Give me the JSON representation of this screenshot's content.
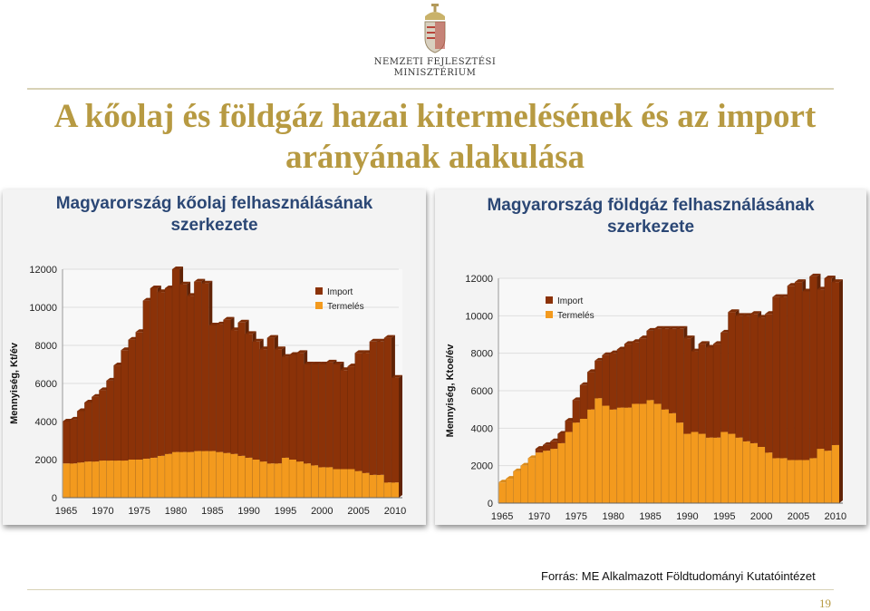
{
  "header": {
    "logo_line1": "Nemzeti Fejlesztési",
    "logo_line2": "Minisztérium",
    "title_line1": "A kőolaj és földgáz hazai kitermelésének és az import",
    "title_line2": "arányának alakulása"
  },
  "colors": {
    "import": "#8b3208",
    "production": "#f39a1e",
    "title": "#b79a42",
    "panel_title": "#2b4775"
  },
  "chart_data": [
    {
      "type": "bar",
      "stacked": true,
      "title": "Magyarország kőolaj felhasználásának szerkezete",
      "ylabel": "Mennyiség, Kt/év",
      "xlabel": "",
      "ylim": [
        0,
        12000
      ],
      "yticks": [
        0,
        2000,
        4000,
        6000,
        8000,
        10000,
        12000
      ],
      "xticks": [
        1965,
        1970,
        1975,
        1980,
        1985,
        1990,
        1995,
        2000,
        2005,
        2010
      ],
      "legend_position": "top-right",
      "x": [
        1965,
        1966,
        1967,
        1968,
        1969,
        1970,
        1971,
        1972,
        1973,
        1974,
        1975,
        1976,
        1977,
        1978,
        1979,
        1980,
        1981,
        1982,
        1983,
        1984,
        1985,
        1986,
        1987,
        1988,
        1989,
        1990,
        1991,
        1992,
        1993,
        1994,
        1995,
        1996,
        1997,
        1998,
        1999,
        2000,
        2001,
        2002,
        2003,
        2004,
        2005,
        2006,
        2007,
        2008,
        2009,
        2010
      ],
      "series": [
        {
          "name": "Termelés",
          "color": "#f39a1e",
          "values": [
            1800,
            1800,
            1850,
            1900,
            1900,
            1950,
            1950,
            1950,
            1950,
            2000,
            2000,
            2050,
            2100,
            2200,
            2300,
            2400,
            2400,
            2400,
            2450,
            2450,
            2450,
            2400,
            2350,
            2300,
            2200,
            2100,
            2000,
            1900,
            1800,
            1800,
            2100,
            2000,
            1900,
            1800,
            1700,
            1600,
            1600,
            1500,
            1500,
            1500,
            1400,
            1300,
            1200,
            1200,
            800,
            800
          ]
        },
        {
          "name": "Import",
          "color": "#8b3208",
          "values": [
            2200,
            2300,
            2700,
            3100,
            3400,
            3700,
            4200,
            5000,
            5800,
            6300,
            6700,
            8300,
            8900,
            8600,
            8700,
            9600,
            8800,
            8200,
            8900,
            8800,
            6600,
            6700,
            7000,
            6500,
            7000,
            6500,
            6200,
            5900,
            6600,
            6000,
            5300,
            5500,
            5700,
            5200,
            5300,
            5400,
            5500,
            5500,
            5200,
            5400,
            6200,
            6300,
            7000,
            7000,
            7600,
            5500
          ]
        }
      ]
    },
    {
      "type": "bar",
      "stacked": true,
      "title": "Magyarország földgáz felhasználásának szerkezete",
      "ylabel": "Mennyiség, Ktoe/év",
      "xlabel": "",
      "ylim": [
        0,
        12000
      ],
      "yticks": [
        0,
        2000,
        4000,
        6000,
        8000,
        10000,
        12000
      ],
      "xticks": [
        1965,
        1970,
        1975,
        1980,
        1985,
        1990,
        1995,
        2000,
        2005,
        2010
      ],
      "legend_position": "top-left",
      "x": [
        1965,
        1966,
        1967,
        1968,
        1969,
        1970,
        1971,
        1972,
        1973,
        1974,
        1975,
        1976,
        1977,
        1978,
        1979,
        1980,
        1981,
        1982,
        1983,
        1984,
        1985,
        1986,
        1987,
        1988,
        1989,
        1990,
        1991,
        1992,
        1993,
        1994,
        1995,
        1996,
        1997,
        1998,
        1999,
        2000,
        2001,
        2002,
        2003,
        2004,
        2005,
        2006,
        2007,
        2008,
        2009,
        2010
      ],
      "series": [
        {
          "name": "Termelés",
          "color": "#f39a1e",
          "values": [
            1100,
            1300,
            1700,
            2000,
            2400,
            2700,
            2800,
            2900,
            3200,
            3800,
            4300,
            4500,
            5000,
            5600,
            5200,
            5000,
            5100,
            5100,
            5300,
            5300,
            5500,
            5300,
            5000,
            4800,
            4300,
            3700,
            3800,
            3700,
            3500,
            3500,
            3800,
            3700,
            3500,
            3300,
            3200,
            3000,
            2700,
            2400,
            2400,
            2300,
            2300,
            2300,
            2400,
            2900,
            2800,
            3100
          ]
        },
        {
          "name": "Import",
          "color": "#8b3208",
          "values": [
            0,
            0,
            0,
            0,
            0,
            200,
            300,
            400,
            500,
            600,
            1200,
            1800,
            2000,
            2000,
            2700,
            3000,
            3100,
            3400,
            3300,
            3500,
            3700,
            4000,
            4300,
            4500,
            5000,
            5100,
            4300,
            4800,
            4800,
            5000,
            5300,
            6500,
            6500,
            6700,
            6900,
            6900,
            7400,
            8600,
            8600,
            9300,
            9500,
            9000,
            9700,
            8500,
            9200,
            8700
          ]
        }
      ]
    }
  ],
  "source": "Forrás: ME Alkalmazott Földtudományi Kutatóintézet",
  "page_number": "19"
}
